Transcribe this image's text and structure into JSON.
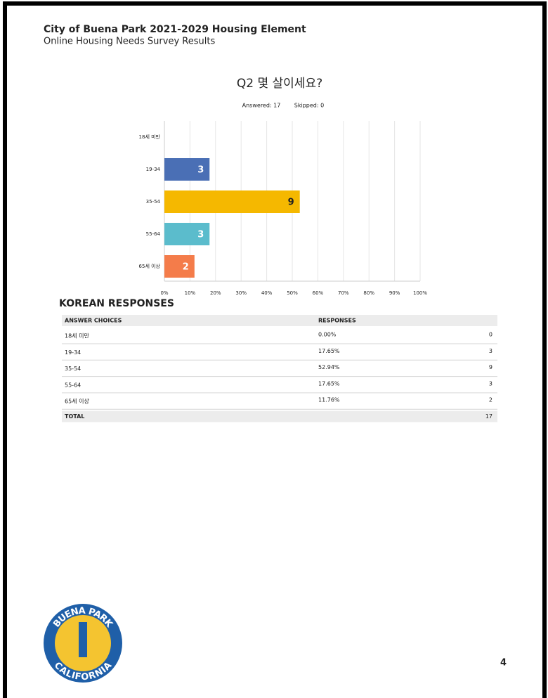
{
  "header": {
    "title": "City of Buena Park 2021-2029 Housing Element",
    "subtitle": "Online Housing Needs Survey Results"
  },
  "chart_data": {
    "type": "bar",
    "orientation": "horizontal",
    "title": "Q2 몇 살이세요?",
    "answered": "Answered: 17",
    "skipped": "Skipped: 0",
    "categories": [
      "18세 미만",
      "19-34",
      "35-54",
      "55-64",
      "65세 이상"
    ],
    "values": [
      0,
      17.65,
      52.94,
      17.65,
      11.76
    ],
    "counts": [
      null,
      3,
      9,
      3,
      2
    ],
    "colors": [
      "#4a6fb5",
      "#4a6fb5",
      "#f5b800",
      "#5bbccc",
      "#f47c4a"
    ],
    "xlim": [
      0,
      100
    ],
    "xticks": [
      {
        "value": 0,
        "label": "0%"
      },
      {
        "value": 10,
        "label": "10%"
      },
      {
        "value": 20,
        "label": "20%"
      },
      {
        "value": 30,
        "label": "30%"
      },
      {
        "value": 40,
        "label": "40%"
      },
      {
        "value": 50,
        "label": "50%"
      },
      {
        "value": 60,
        "label": "60%"
      },
      {
        "value": 70,
        "label": "70%"
      },
      {
        "value": 80,
        "label": "80%"
      },
      {
        "value": 90,
        "label": "90%"
      },
      {
        "value": 100,
        "label": "100%"
      }
    ],
    "grid": true
  },
  "table": {
    "title": "KOREAN RESPONSES",
    "columns": [
      "ANSWER CHOICES",
      "RESPONSES"
    ],
    "rows": [
      [
        "18세 미만",
        "0.00%",
        0
      ],
      [
        "19-34",
        "17.65%",
        3
      ],
      [
        "35-54",
        "52.94%",
        9
      ],
      [
        "55-64",
        "17.65%",
        3
      ],
      [
        "65세 이상",
        "11.76%",
        2
      ]
    ],
    "total": {
      "label": "TOTAL",
      "value": 17
    }
  },
  "logo": {
    "top": "BUENA PARK",
    "bottom": "CALIFORNIA"
  },
  "page_number": 4
}
